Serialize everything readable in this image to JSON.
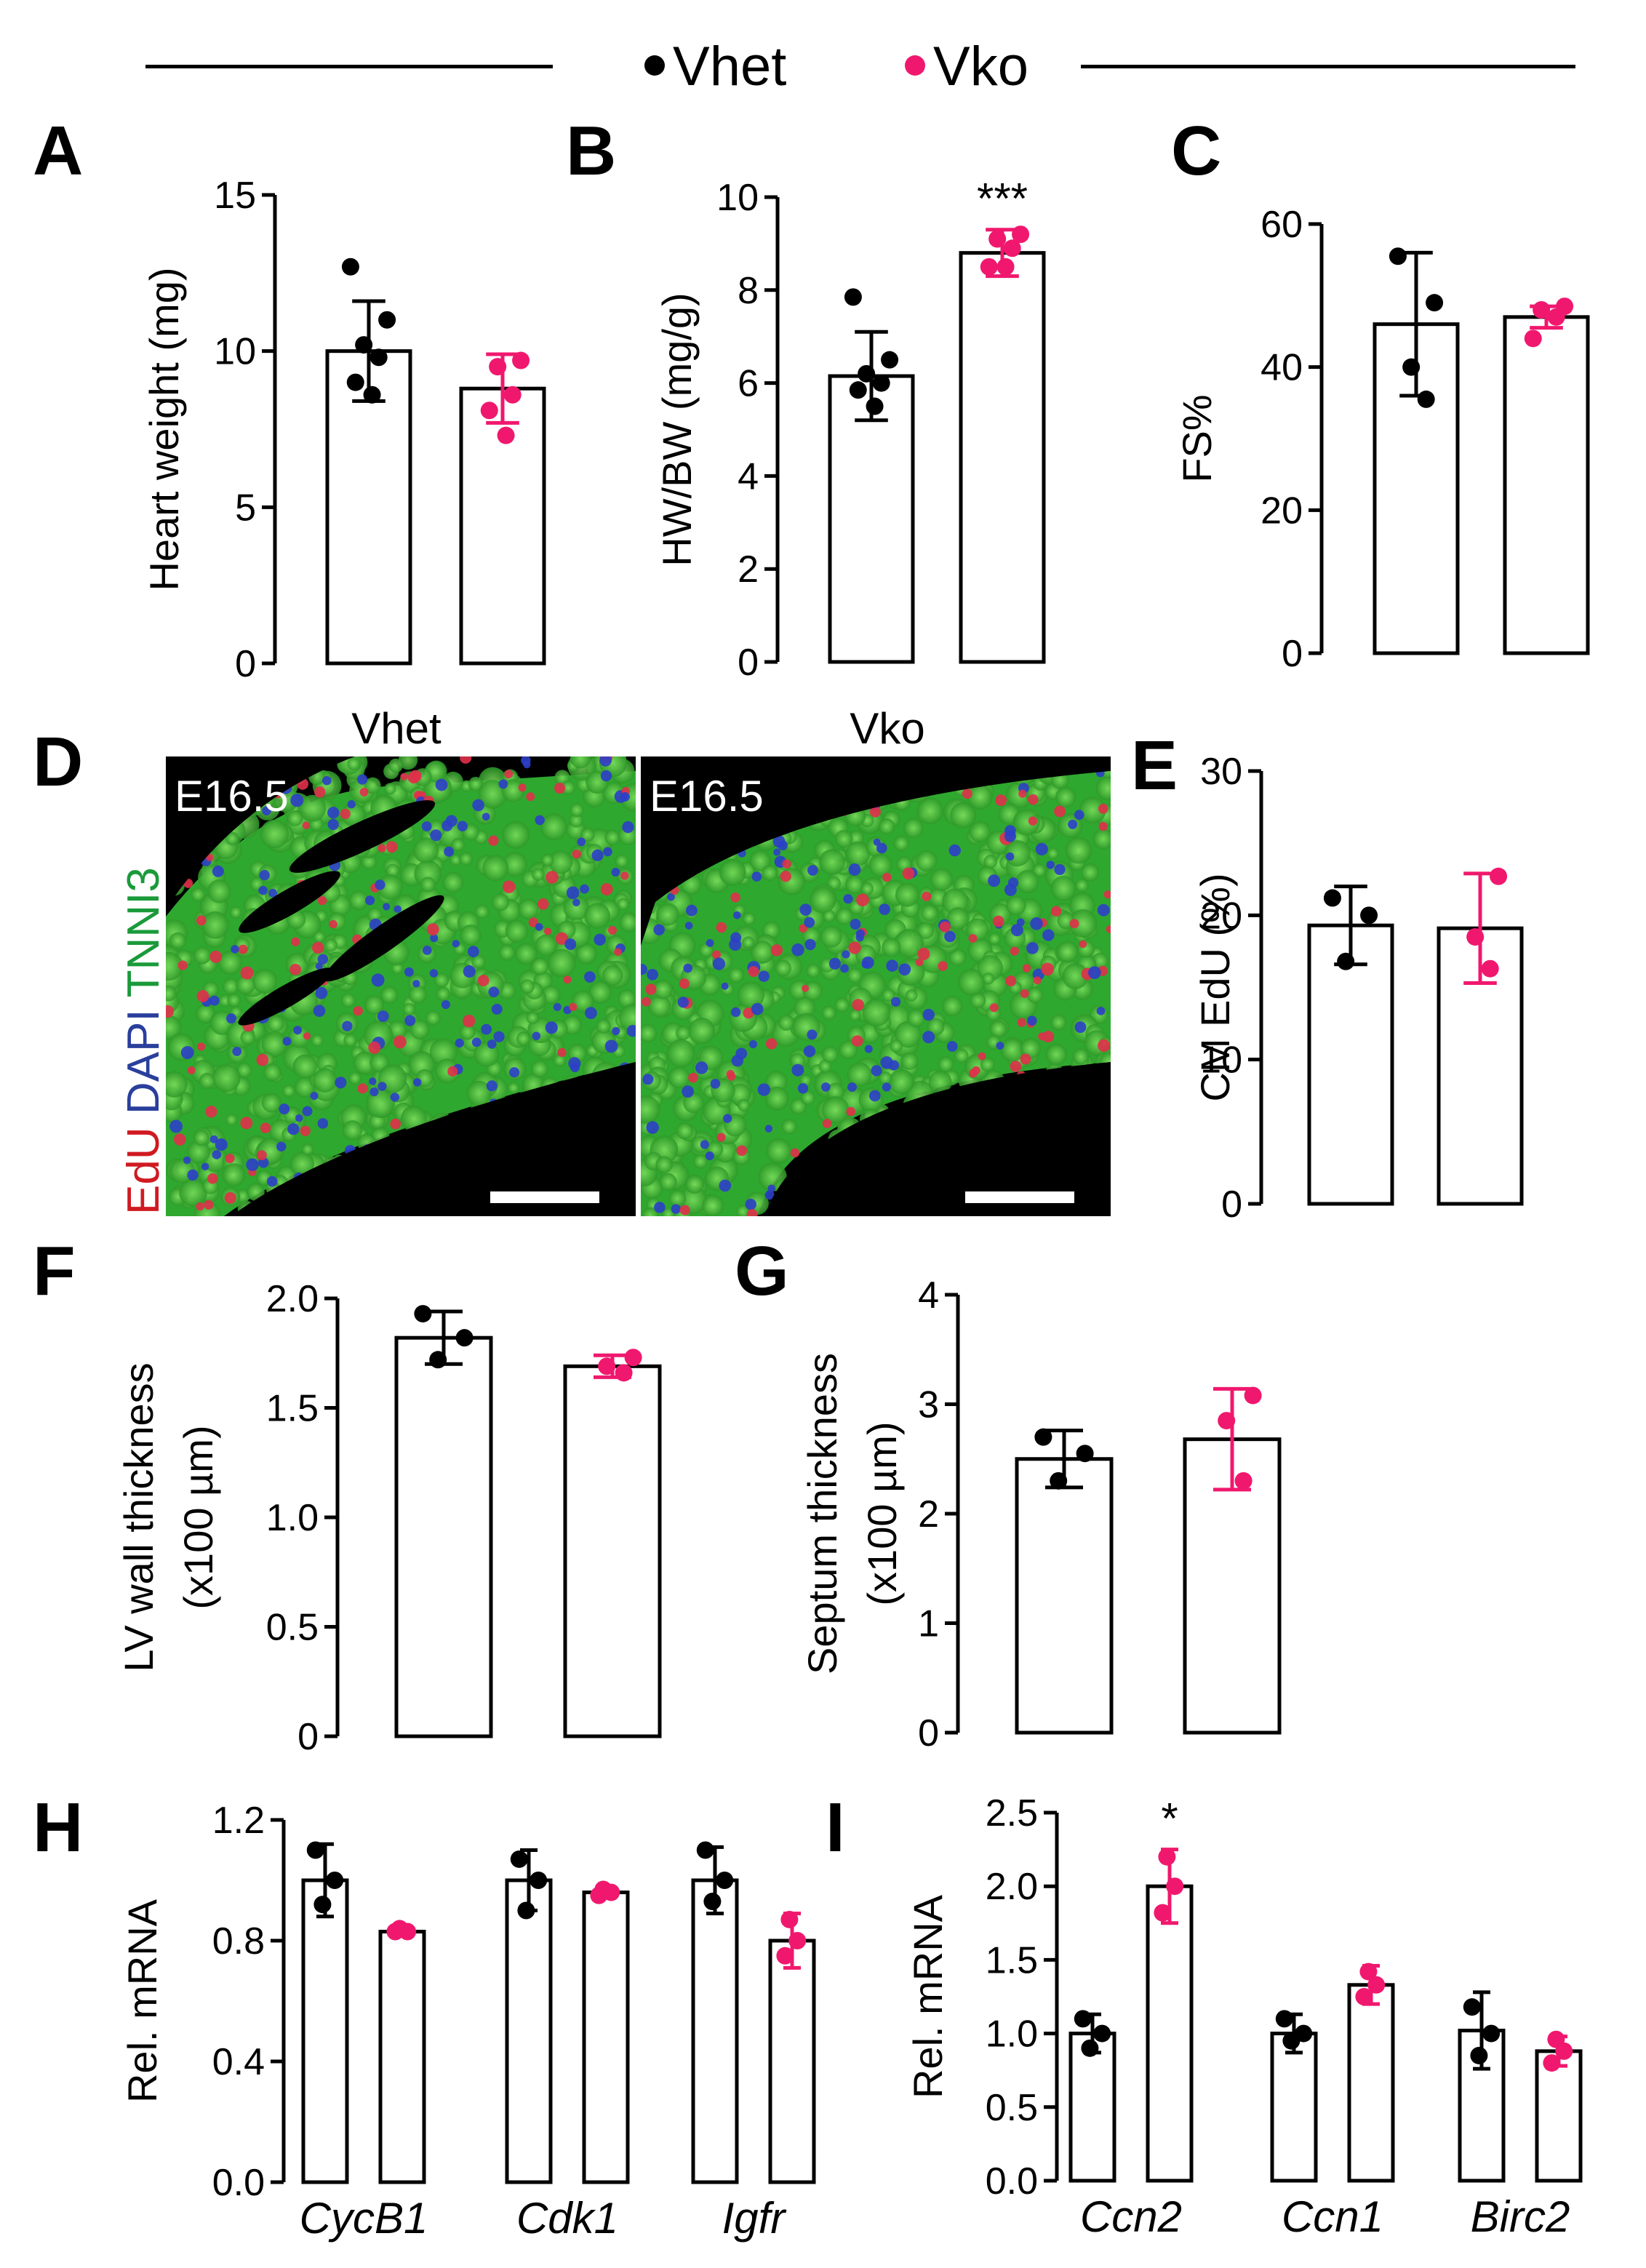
{
  "legend": {
    "items": [
      {
        "name": "Vhet",
        "color": "#000000"
      },
      {
        "name": "Vko",
        "color": "#f0186e"
      }
    ]
  },
  "colors": {
    "vhet": "#000000",
    "vko": "#f0186e"
  },
  "panel_d": {
    "label": "D",
    "stain_label": [
      {
        "text": "EdU",
        "color": "#d01a22"
      },
      {
        "text": " DAPI",
        "color": "#2a3f9c"
      },
      {
        "text": " TNNI3",
        "color": "#1a9a3a"
      }
    ],
    "images": [
      {
        "title": "Vhet",
        "stage": "E16.5"
      },
      {
        "title": "Vko",
        "stage": "E16.5"
      }
    ]
  },
  "chart_data": [
    {
      "id": "A",
      "type": "bar",
      "label": "A",
      "ylabel": "Heart weight (mg)",
      "ylim": [
        0,
        15
      ],
      "yticks": [
        0,
        5,
        10,
        15
      ],
      "categories": [
        "Vhet",
        "Vko"
      ],
      "values": [
        10.0,
        8.8
      ],
      "errors": [
        1.6,
        1.1
      ],
      "points": [
        [
          12.7,
          11.0,
          10.2,
          9.8,
          9.0,
          8.6
        ],
        [
          9.7,
          9.5,
          8.6,
          8.1,
          7.3
        ]
      ],
      "significance": [
        "",
        ""
      ]
    },
    {
      "id": "B",
      "type": "bar",
      "label": "B",
      "ylabel": "HW/BW (mg/g)",
      "ylim": [
        0,
        10
      ],
      "yticks": [
        0,
        2,
        4,
        6,
        8,
        10
      ],
      "categories": [
        "Vhet",
        "Vko"
      ],
      "values": [
        6.15,
        8.8
      ],
      "errors": [
        0.95,
        0.5
      ],
      "points": [
        [
          7.85,
          6.5,
          6.2,
          6.0,
          5.85,
          5.5
        ],
        [
          9.2,
          9.1,
          8.9,
          8.5,
          8.5
        ]
      ],
      "significance": [
        "",
        "***"
      ]
    },
    {
      "id": "C",
      "type": "bar",
      "label": "C",
      "ylabel": "FS%",
      "ylim": [
        0,
        60
      ],
      "yticks": [
        0,
        20,
        40,
        60
      ],
      "categories": [
        "Vhet",
        "Vko"
      ],
      "values": [
        46,
        47
      ],
      "errors": [
        10,
        1.5
      ],
      "points": [
        [
          55.5,
          49,
          40,
          35.5
        ],
        [
          48.5,
          48,
          47,
          44
        ]
      ],
      "significance": [
        "",
        ""
      ]
    },
    {
      "id": "E",
      "type": "bar",
      "label": "E",
      "ylabel": "CM EdU (%)",
      "ylim": [
        0,
        30
      ],
      "yticks": [
        0,
        10,
        20,
        30
      ],
      "categories": [
        "Vhet",
        "Vko"
      ],
      "values": [
        19.3,
        19.1
      ],
      "errors": [
        2.7,
        3.8
      ],
      "points": [
        [
          21.2,
          20.0,
          16.8
        ],
        [
          22.7,
          18.5,
          16.3
        ]
      ],
      "significance": [
        "",
        ""
      ]
    },
    {
      "id": "F",
      "type": "bar",
      "label": "F",
      "ylabel": [
        "LV wall thickness",
        "(x100 µm)"
      ],
      "ylim": [
        0,
        2.0
      ],
      "yticks": [
        0,
        0.5,
        1.0,
        1.5,
        2.0
      ],
      "ytick_labels": [
        "0",
        "0.5",
        "1.0",
        "1.5",
        "2.0"
      ],
      "categories": [
        "Vhet",
        "Vko"
      ],
      "values": [
        1.82,
        1.69
      ],
      "errors": [
        0.12,
        0.05
      ],
      "points": [
        [
          1.93,
          1.82,
          1.72
        ],
        [
          1.73,
          1.69,
          1.66
        ]
      ],
      "significance": [
        "",
        ""
      ]
    },
    {
      "id": "G",
      "type": "bar",
      "label": "G",
      "ylabel": [
        "Septum thickness",
        "(x100 µm)"
      ],
      "ylim": [
        0,
        4
      ],
      "yticks": [
        0,
        1,
        2,
        3,
        4
      ],
      "categories": [
        "Vhet",
        "Vko"
      ],
      "values": [
        2.5,
        2.68
      ],
      "errors": [
        0.26,
        0.46
      ],
      "points": [
        [
          2.7,
          2.55,
          2.3
        ],
        [
          3.08,
          2.85,
          2.3
        ]
      ],
      "significance": [
        "",
        ""
      ]
    },
    {
      "id": "H",
      "type": "bar",
      "label": "H",
      "ylabel": "Rel. mRNA",
      "ylim": [
        0,
        1.2
      ],
      "yticks": [
        0,
        0.4,
        0.8,
        1.2
      ],
      "ytick_labels": [
        "0.0",
        "0.4",
        "0.8",
        "1.2"
      ],
      "categories": [
        "CycB1",
        "Cdk1",
        "Igfr"
      ],
      "series": [
        {
          "name": "Vhet",
          "values": [
            1.0,
            1.0,
            1.0
          ],
          "errors": [
            0.12,
            0.1,
            0.11
          ],
          "points": [
            [
              1.1,
              1.0,
              0.92
            ],
            [
              1.07,
              1.0,
              0.9
            ],
            [
              1.1,
              1.0,
              0.93
            ]
          ]
        },
        {
          "name": "Vko",
          "values": [
            0.83,
            0.96,
            0.8
          ],
          "errors": [
            0.01,
            0.015,
            0.09
          ],
          "points": [
            [
              0.84,
              0.83,
              0.83
            ],
            [
              0.97,
              0.96,
              0.95
            ],
            [
              0.87,
              0.8,
              0.75
            ]
          ]
        }
      ],
      "significance": [
        "",
        "",
        ""
      ]
    },
    {
      "id": "I",
      "type": "bar",
      "label": "I",
      "ylabel": "Rel. mRNA",
      "ylim": [
        0,
        2.5
      ],
      "yticks": [
        0,
        0.5,
        1.0,
        1.5,
        2.0,
        2.5
      ],
      "ytick_labels": [
        "0.0",
        "0.5",
        "1.0",
        "1.5",
        "2.0",
        "2.5"
      ],
      "categories": [
        "Ccn2",
        "Ccn1",
        "Birc2"
      ],
      "series": [
        {
          "name": "Vhet",
          "values": [
            1.0,
            1.0,
            1.02
          ],
          "errors": [
            0.13,
            0.13,
            0.26
          ],
          "points": [
            [
              1.1,
              1.0,
              0.9
            ],
            [
              1.1,
              1.0,
              0.95
            ],
            [
              1.18,
              1.0,
              0.85
            ]
          ]
        },
        {
          "name": "Vko",
          "values": [
            2.0,
            1.33,
            0.88
          ],
          "errors": [
            0.25,
            0.13,
            0.1
          ],
          "points": [
            [
              2.2,
              2.0,
              1.82
            ],
            [
              1.42,
              1.33,
              1.25
            ],
            [
              0.96,
              0.88,
              0.8
            ]
          ]
        }
      ],
      "significance": [
        "*",
        "",
        ""
      ]
    }
  ]
}
